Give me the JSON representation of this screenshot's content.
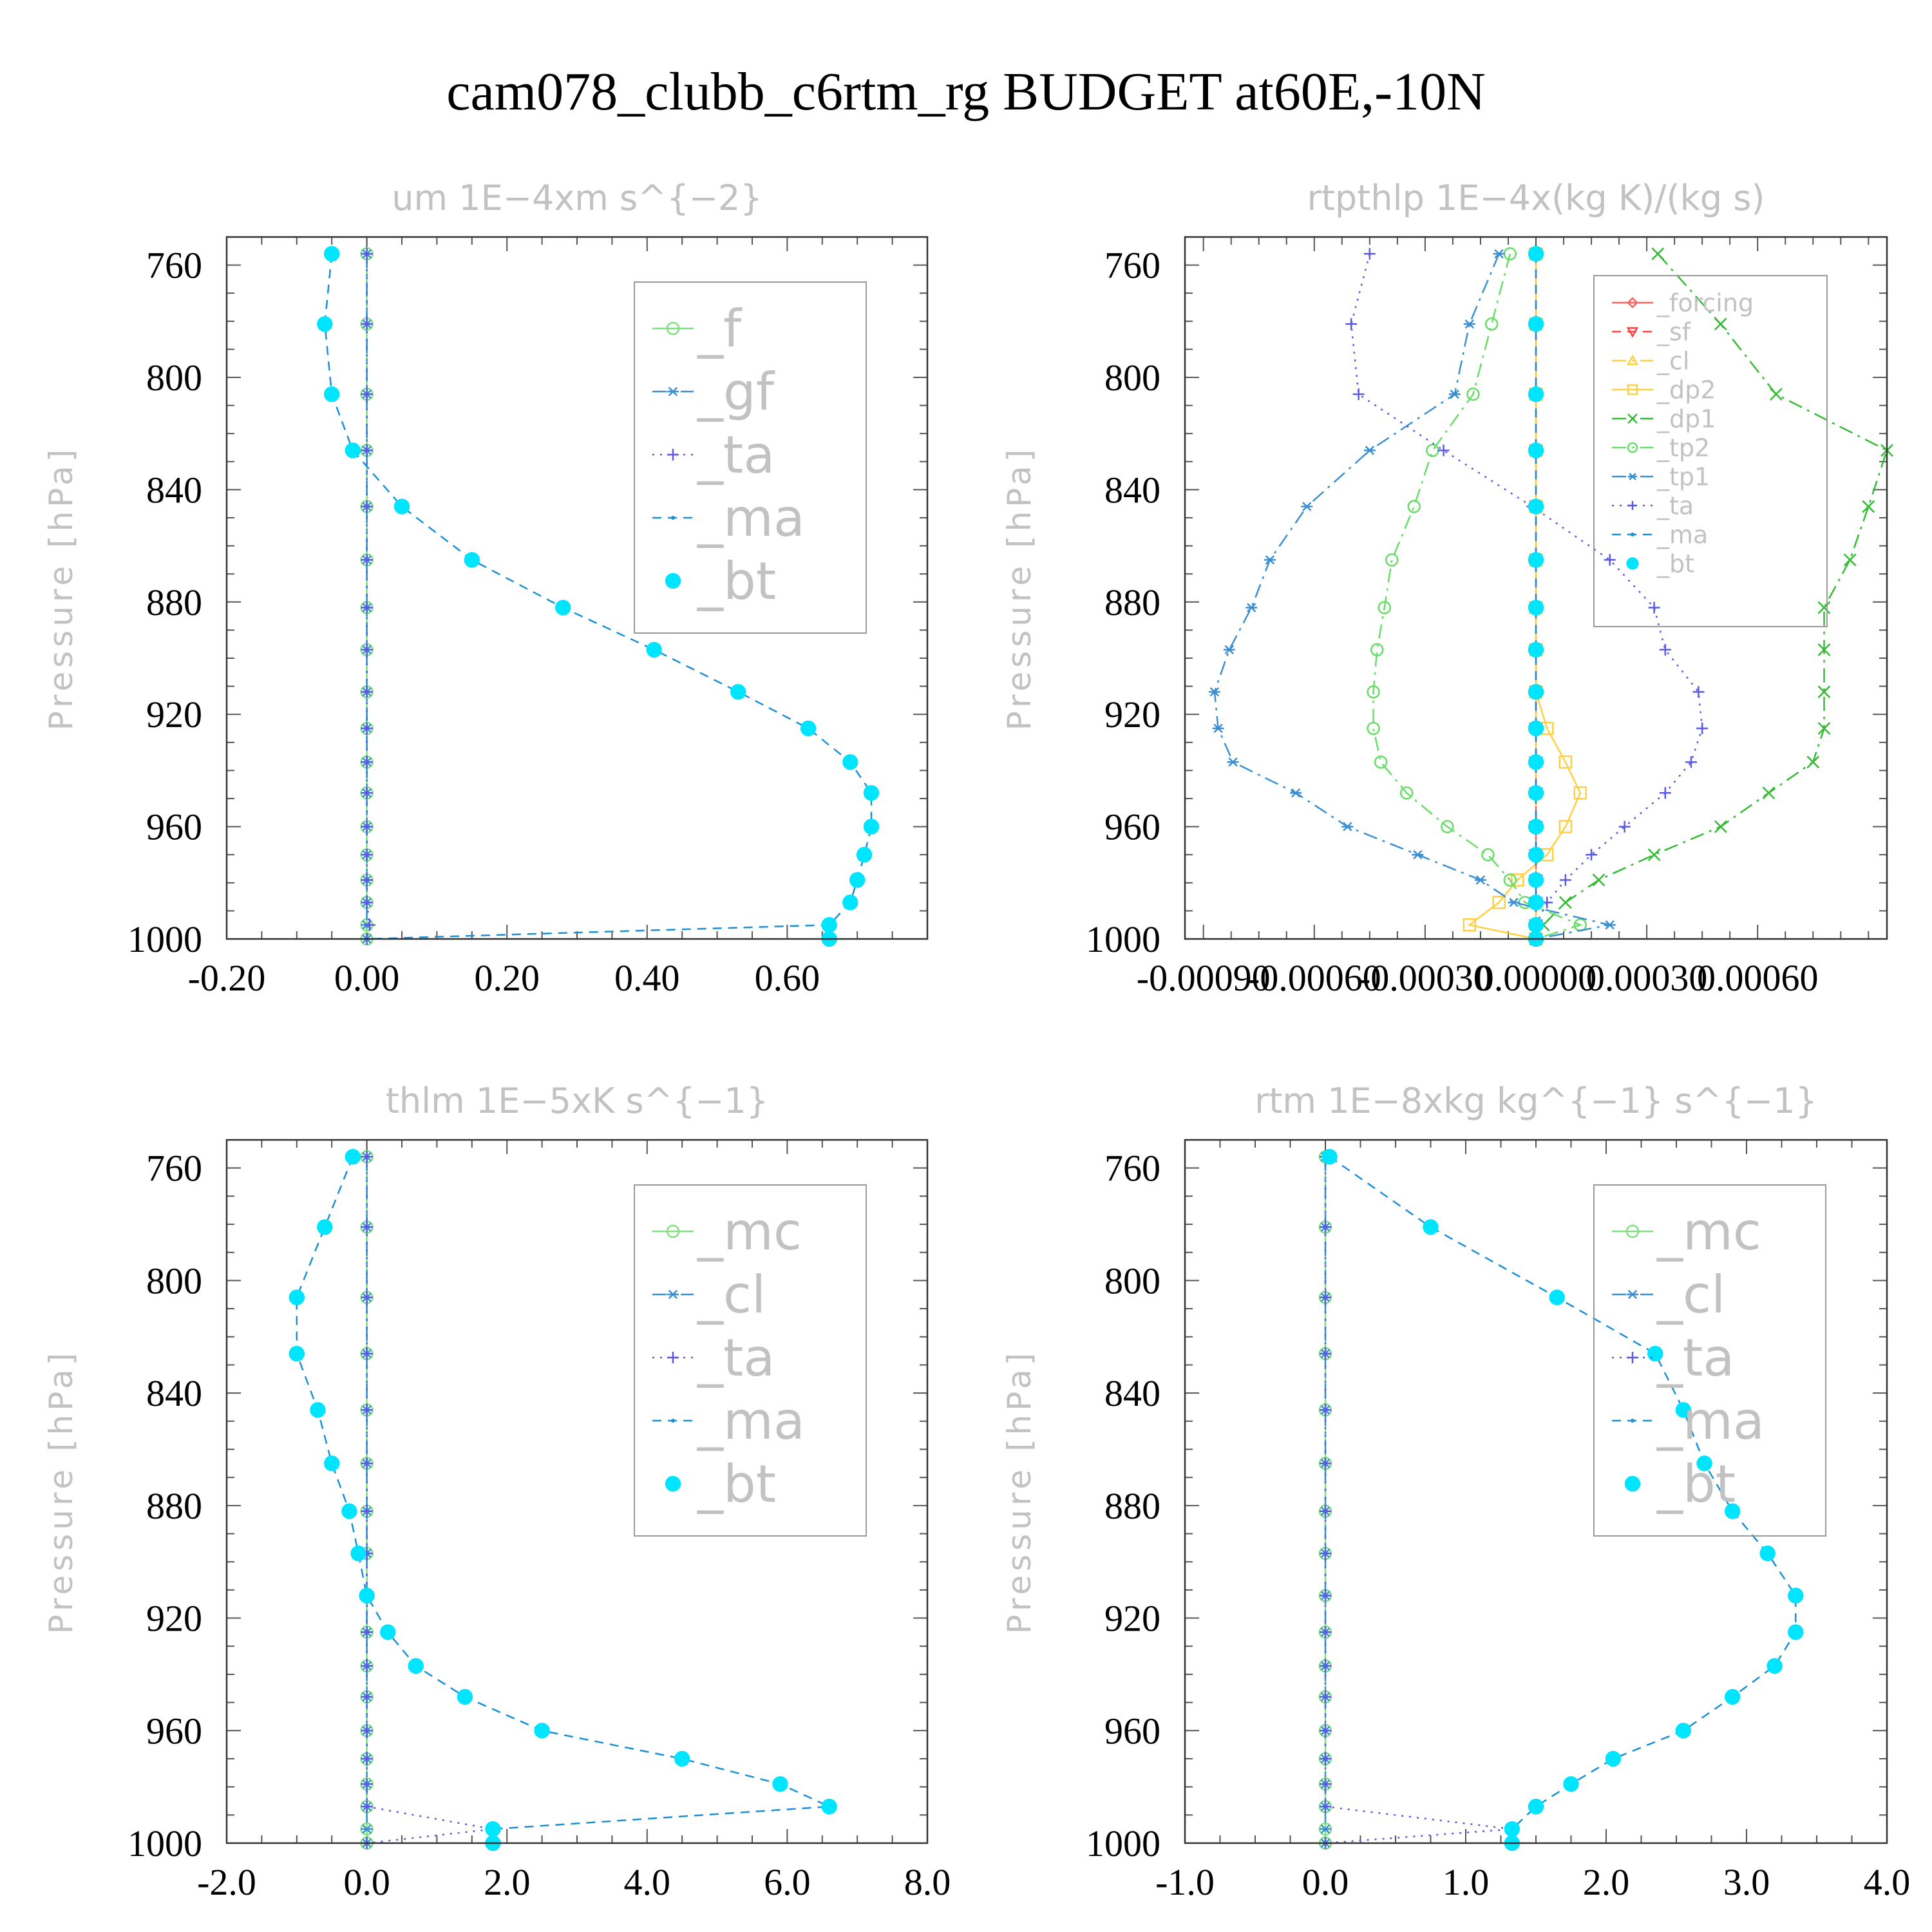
{
  "page": {
    "title": "cam078_clubb_c6rtm_rg  BUDGET at60E,-10N"
  },
  "chart_data": [
    {
      "type": "line",
      "title": "um   1E−4xm s^{−2}",
      "ylabel": "Pressure [hPa]",
      "xlim": [
        -0.2,
        0.8
      ],
      "ylim": [
        750,
        1000
      ],
      "xticks": [
        -0.2,
        0,
        0.2,
        0.4,
        0.6
      ],
      "xtick_labels": [
        "-0.20",
        "0.00",
        "0.20",
        "0.40",
        "0.60"
      ],
      "yticks": [
        760,
        800,
        840,
        880,
        920,
        960,
        1000
      ],
      "ytick_labels": [
        "760",
        "800",
        "840",
        "880",
        "920",
        "960",
        "1000"
      ],
      "legend_position": "top-right",
      "legend_size": "large",
      "levels": [
        756,
        781,
        806,
        826,
        846,
        865,
        882,
        897,
        912,
        925,
        937,
        948,
        960,
        970,
        979,
        987,
        995,
        1000
      ],
      "series": [
        {
          "name": "_f",
          "color": "#7ee07e",
          "marker": "circle",
          "dash": "solid",
          "values": [
            0,
            0,
            0,
            0,
            0,
            0,
            0,
            0,
            0,
            0,
            0,
            0,
            0,
            0,
            0,
            0,
            0,
            0
          ]
        },
        {
          "name": "_gf",
          "color": "#3b8fd1",
          "marker": "asterisk",
          "dash": "dashdot",
          "values": [
            0,
            0,
            0,
            0,
            0,
            0,
            0,
            0,
            0,
            0,
            0,
            0,
            0,
            0,
            0,
            0,
            0,
            0
          ]
        },
        {
          "name": "_ta",
          "color": "#5a5ae0",
          "marker": "plus",
          "dash": "dot",
          "values": [
            0,
            0,
            0,
            0,
            0,
            0,
            0,
            0,
            0,
            0,
            0,
            0,
            0,
            0,
            0,
            0,
            0.004,
            0
          ]
        },
        {
          "name": "_ma",
          "color": "#1a8fd6",
          "marker": "dot",
          "dash": "dash",
          "values": [
            -0.05,
            -0.06,
            -0.05,
            -0.02,
            0.05,
            0.15,
            0.28,
            0.41,
            0.53,
            0.63,
            0.69,
            0.72,
            0.72,
            0.71,
            0.7,
            0.69,
            0.66,
            0
          ]
        },
        {
          "name": "_bt",
          "color": "#00e5ff",
          "marker": "filled-circle",
          "dash": "none",
          "values": [
            -0.05,
            -0.06,
            -0.05,
            -0.02,
            0.05,
            0.15,
            0.28,
            0.41,
            0.53,
            0.63,
            0.69,
            0.72,
            0.72,
            0.71,
            0.7,
            0.69,
            0.66,
            0.66
          ]
        }
      ]
    },
    {
      "type": "line",
      "title": "rtpthlp   1E−4x(kg K)/(kg s)",
      "ylabel": "Pressure [hPa]",
      "xlim": [
        -0.00095,
        0.00095
      ],
      "ylim": [
        750,
        1000
      ],
      "xticks": [
        -0.0009,
        -0.0006,
        -0.0003,
        0,
        0.0003,
        0.0006
      ],
      "xtick_labels": [
        "-0.00090",
        "-0.00060",
        "-0.00030",
        "0.00000",
        "0.00030",
        "0.00060"
      ],
      "yticks": [
        760,
        800,
        840,
        880,
        920,
        960,
        1000
      ],
      "ytick_labels": [
        "760",
        "800",
        "840",
        "880",
        "920",
        "960",
        "1000"
      ],
      "legend_position": "top-right",
      "legend_size": "small",
      "levels": [
        756,
        781,
        806,
        826,
        846,
        865,
        882,
        897,
        912,
        925,
        937,
        948,
        960,
        970,
        979,
        987,
        995,
        1000
      ],
      "series": [
        {
          "name": "_forcing",
          "color": "#ff6060",
          "marker": "diamond",
          "dash": "solid",
          "values": [
            0,
            0,
            0,
            0,
            0,
            0,
            0,
            0,
            0,
            0,
            0,
            0,
            0,
            0,
            0,
            0,
            0,
            0
          ]
        },
        {
          "name": "_sf",
          "color": "#ff4040",
          "marker": "triangle-down",
          "dash": "dash",
          "values": [
            0,
            0,
            0,
            0,
            0,
            0,
            0,
            0,
            0,
            0,
            0,
            0,
            0,
            0,
            0,
            0,
            0,
            0
          ]
        },
        {
          "name": "_cl",
          "color": "#ffd040",
          "marker": "triangle",
          "dash": "dashdot",
          "values": [
            0,
            0,
            0,
            0,
            0,
            0,
            0,
            0,
            0,
            0,
            0,
            0,
            0,
            0,
            0,
            0,
            0,
            0
          ]
        },
        {
          "name": "_dp2",
          "color": "#ffd040",
          "marker": "square",
          "dash": "solid",
          "values": [
            0,
            0,
            0,
            0,
            0,
            0,
            0,
            0,
            0,
            3e-05,
            8e-05,
            0.00012,
            8e-05,
            3e-05,
            -5e-05,
            -0.0001,
            -0.00018,
            0
          ]
        },
        {
          "name": "_dp1",
          "color": "#33bb33",
          "marker": "x",
          "dash": "dashdot",
          "values": [
            0.00033,
            0.0005,
            0.00065,
            0.00095,
            0.0009,
            0.00085,
            0.00078,
            0.00078,
            0.00078,
            0.00078,
            0.00075,
            0.00063,
            0.0005,
            0.00032,
            0.00017,
            8e-05,
            2e-05,
            0
          ]
        },
        {
          "name": "_tp2",
          "color": "#66dd66",
          "marker": "circle",
          "dash": "dashdot",
          "values": [
            -7e-05,
            -0.00012,
            -0.00017,
            -0.00028,
            -0.00033,
            -0.00039,
            -0.00041,
            -0.00043,
            -0.00044,
            -0.00044,
            -0.00042,
            -0.00035,
            -0.00024,
            -0.00013,
            -7e-05,
            -3e-05,
            0.00012,
            0
          ]
        },
        {
          "name": "_tp1",
          "color": "#3b8fd1",
          "marker": "asterisk",
          "dash": "dashdot",
          "values": [
            -0.0001,
            -0.00018,
            -0.00022,
            -0.00045,
            -0.00062,
            -0.00072,
            -0.00077,
            -0.00083,
            -0.00087,
            -0.00086,
            -0.00082,
            -0.00065,
            -0.00051,
            -0.00032,
            -0.00015,
            -6e-05,
            0.0002,
            0
          ]
        },
        {
          "name": "_ta",
          "color": "#5a5ae0",
          "marker": "plus",
          "dash": "dot",
          "values": [
            -0.00045,
            -0.0005,
            -0.00048,
            -0.00025,
            -1e-05,
            0.0002,
            0.00032,
            0.00035,
            0.00044,
            0.00045,
            0.00042,
            0.00035,
            0.00024,
            0.00015,
            8e-05,
            3e-05,
            0,
            0
          ]
        },
        {
          "name": "_ma",
          "color": "#1a8fd6",
          "marker": "dot",
          "dash": "dash",
          "values": [
            0,
            0,
            0,
            0,
            0,
            0,
            0,
            0,
            0,
            0,
            0,
            0,
            0,
            0,
            0,
            0,
            0,
            0
          ]
        },
        {
          "name": "_bt",
          "color": "#00e5ff",
          "marker": "filled-circle",
          "dash": "none",
          "values": [
            0,
            0,
            0,
            0,
            0,
            0,
            0,
            0,
            0,
            0,
            0,
            0,
            0,
            0,
            0,
            0,
            0,
            0
          ]
        }
      ]
    },
    {
      "type": "line",
      "title": "thlm   1E−5xK s^{−1}",
      "ylabel": "Pressure [hPa]",
      "xlim": [
        -2,
        8
      ],
      "ylim": [
        750,
        1000
      ],
      "xticks": [
        -2,
        0,
        2,
        4,
        6,
        8
      ],
      "xtick_labels": [
        "-2.0",
        "0.0",
        "2.0",
        "4.0",
        "6.0",
        "8.0"
      ],
      "yticks": [
        760,
        800,
        840,
        880,
        920,
        960,
        1000
      ],
      "ytick_labels": [
        "760",
        "800",
        "840",
        "880",
        "920",
        "960",
        "1000"
      ],
      "legend_position": "top-right",
      "legend_size": "large",
      "levels": [
        756,
        781,
        806,
        826,
        846,
        865,
        882,
        897,
        912,
        925,
        937,
        948,
        960,
        970,
        979,
        987,
        995,
        1000
      ],
      "series": [
        {
          "name": "_mc",
          "color": "#7ee07e",
          "marker": "circle",
          "dash": "solid",
          "values": [
            0,
            0,
            0,
            0,
            0,
            0,
            0,
            0,
            0,
            0,
            0,
            0,
            0,
            0,
            0,
            0,
            0,
            0
          ]
        },
        {
          "name": "_cl",
          "color": "#3b8fd1",
          "marker": "asterisk",
          "dash": "dashdot",
          "values": [
            0,
            0,
            0,
            0,
            0,
            0,
            0,
            0,
            0,
            0,
            0,
            0,
            0,
            0,
            0,
            0,
            0,
            0
          ]
        },
        {
          "name": "_ta",
          "color": "#5a5ae0",
          "marker": "plus",
          "dash": "dot",
          "values": [
            0,
            0,
            0,
            0,
            0,
            0,
            0,
            0,
            0,
            0,
            0,
            0,
            0,
            0,
            0,
            0,
            1.8,
            0
          ]
        },
        {
          "name": "_ma",
          "color": "#1a8fd6",
          "marker": "dot",
          "dash": "dash",
          "values": [
            -0.2,
            -0.6,
            -1.0,
            -1.0,
            -0.7,
            -0.5,
            -0.25,
            -0.12,
            0,
            0.3,
            0.7,
            1.4,
            2.5,
            4.5,
            5.9,
            6.6,
            1.8,
            1.8
          ]
        },
        {
          "name": "_bt",
          "color": "#00e5ff",
          "marker": "filled-circle",
          "dash": "none",
          "values": [
            -0.2,
            -0.6,
            -1.0,
            -1.0,
            -0.7,
            -0.5,
            -0.25,
            -0.12,
            0,
            0.3,
            0.7,
            1.4,
            2.5,
            4.5,
            5.9,
            6.6,
            1.8,
            1.8
          ]
        }
      ]
    },
    {
      "type": "line",
      "title": "rtm   1E−8xkg kg^{−1} s^{−1}",
      "ylabel": "Pressure [hPa]",
      "xlim": [
        -1,
        4
      ],
      "ylim": [
        750,
        1000
      ],
      "xticks": [
        -1,
        0,
        1,
        2,
        3,
        4
      ],
      "xtick_labels": [
        "-1.0",
        "0.0",
        "1.0",
        "2.0",
        "3.0",
        "4.0"
      ],
      "yticks": [
        760,
        800,
        840,
        880,
        920,
        960,
        1000
      ],
      "ytick_labels": [
        "760",
        "800",
        "840",
        "880",
        "920",
        "960",
        "1000"
      ],
      "legend_position": "top-right",
      "legend_size": "large",
      "levels": [
        756,
        781,
        806,
        826,
        846,
        865,
        882,
        897,
        912,
        925,
        937,
        948,
        960,
        970,
        979,
        987,
        995,
        1000
      ],
      "series": [
        {
          "name": "_mc",
          "color": "#7ee07e",
          "marker": "circle",
          "dash": "solid",
          "values": [
            0,
            0,
            0,
            0,
            0,
            0,
            0,
            0,
            0,
            0,
            0,
            0,
            0,
            0,
            0,
            0,
            0,
            0
          ]
        },
        {
          "name": "_cl",
          "color": "#3b8fd1",
          "marker": "asterisk",
          "dash": "dashdot",
          "values": [
            0,
            0,
            0,
            0,
            0,
            0,
            0,
            0,
            0,
            0,
            0,
            0,
            0,
            0,
            0,
            0,
            0,
            0
          ]
        },
        {
          "name": "_ta",
          "color": "#5a5ae0",
          "marker": "plus",
          "dash": "dot",
          "values": [
            0,
            0,
            0,
            0,
            0,
            0,
            0,
            0,
            0,
            0,
            0,
            0,
            0,
            0,
            0,
            0,
            1.33,
            0
          ]
        },
        {
          "name": "_ma",
          "color": "#1a8fd6",
          "marker": "dot",
          "dash": "dash",
          "values": [
            0.03,
            0.75,
            1.65,
            2.35,
            2.55,
            2.7,
            2.9,
            3.15,
            3.35,
            3.35,
            3.2,
            2.9,
            2.55,
            2.05,
            1.75,
            1.5,
            1.33,
            1.33
          ]
        },
        {
          "name": "_bt",
          "color": "#00e5ff",
          "marker": "filled-circle",
          "dash": "none",
          "values": [
            0.03,
            0.75,
            1.65,
            2.35,
            2.55,
            2.7,
            2.9,
            3.15,
            3.35,
            3.35,
            3.2,
            2.9,
            2.55,
            2.05,
            1.75,
            1.5,
            1.33,
            1.33
          ]
        }
      ]
    }
  ]
}
